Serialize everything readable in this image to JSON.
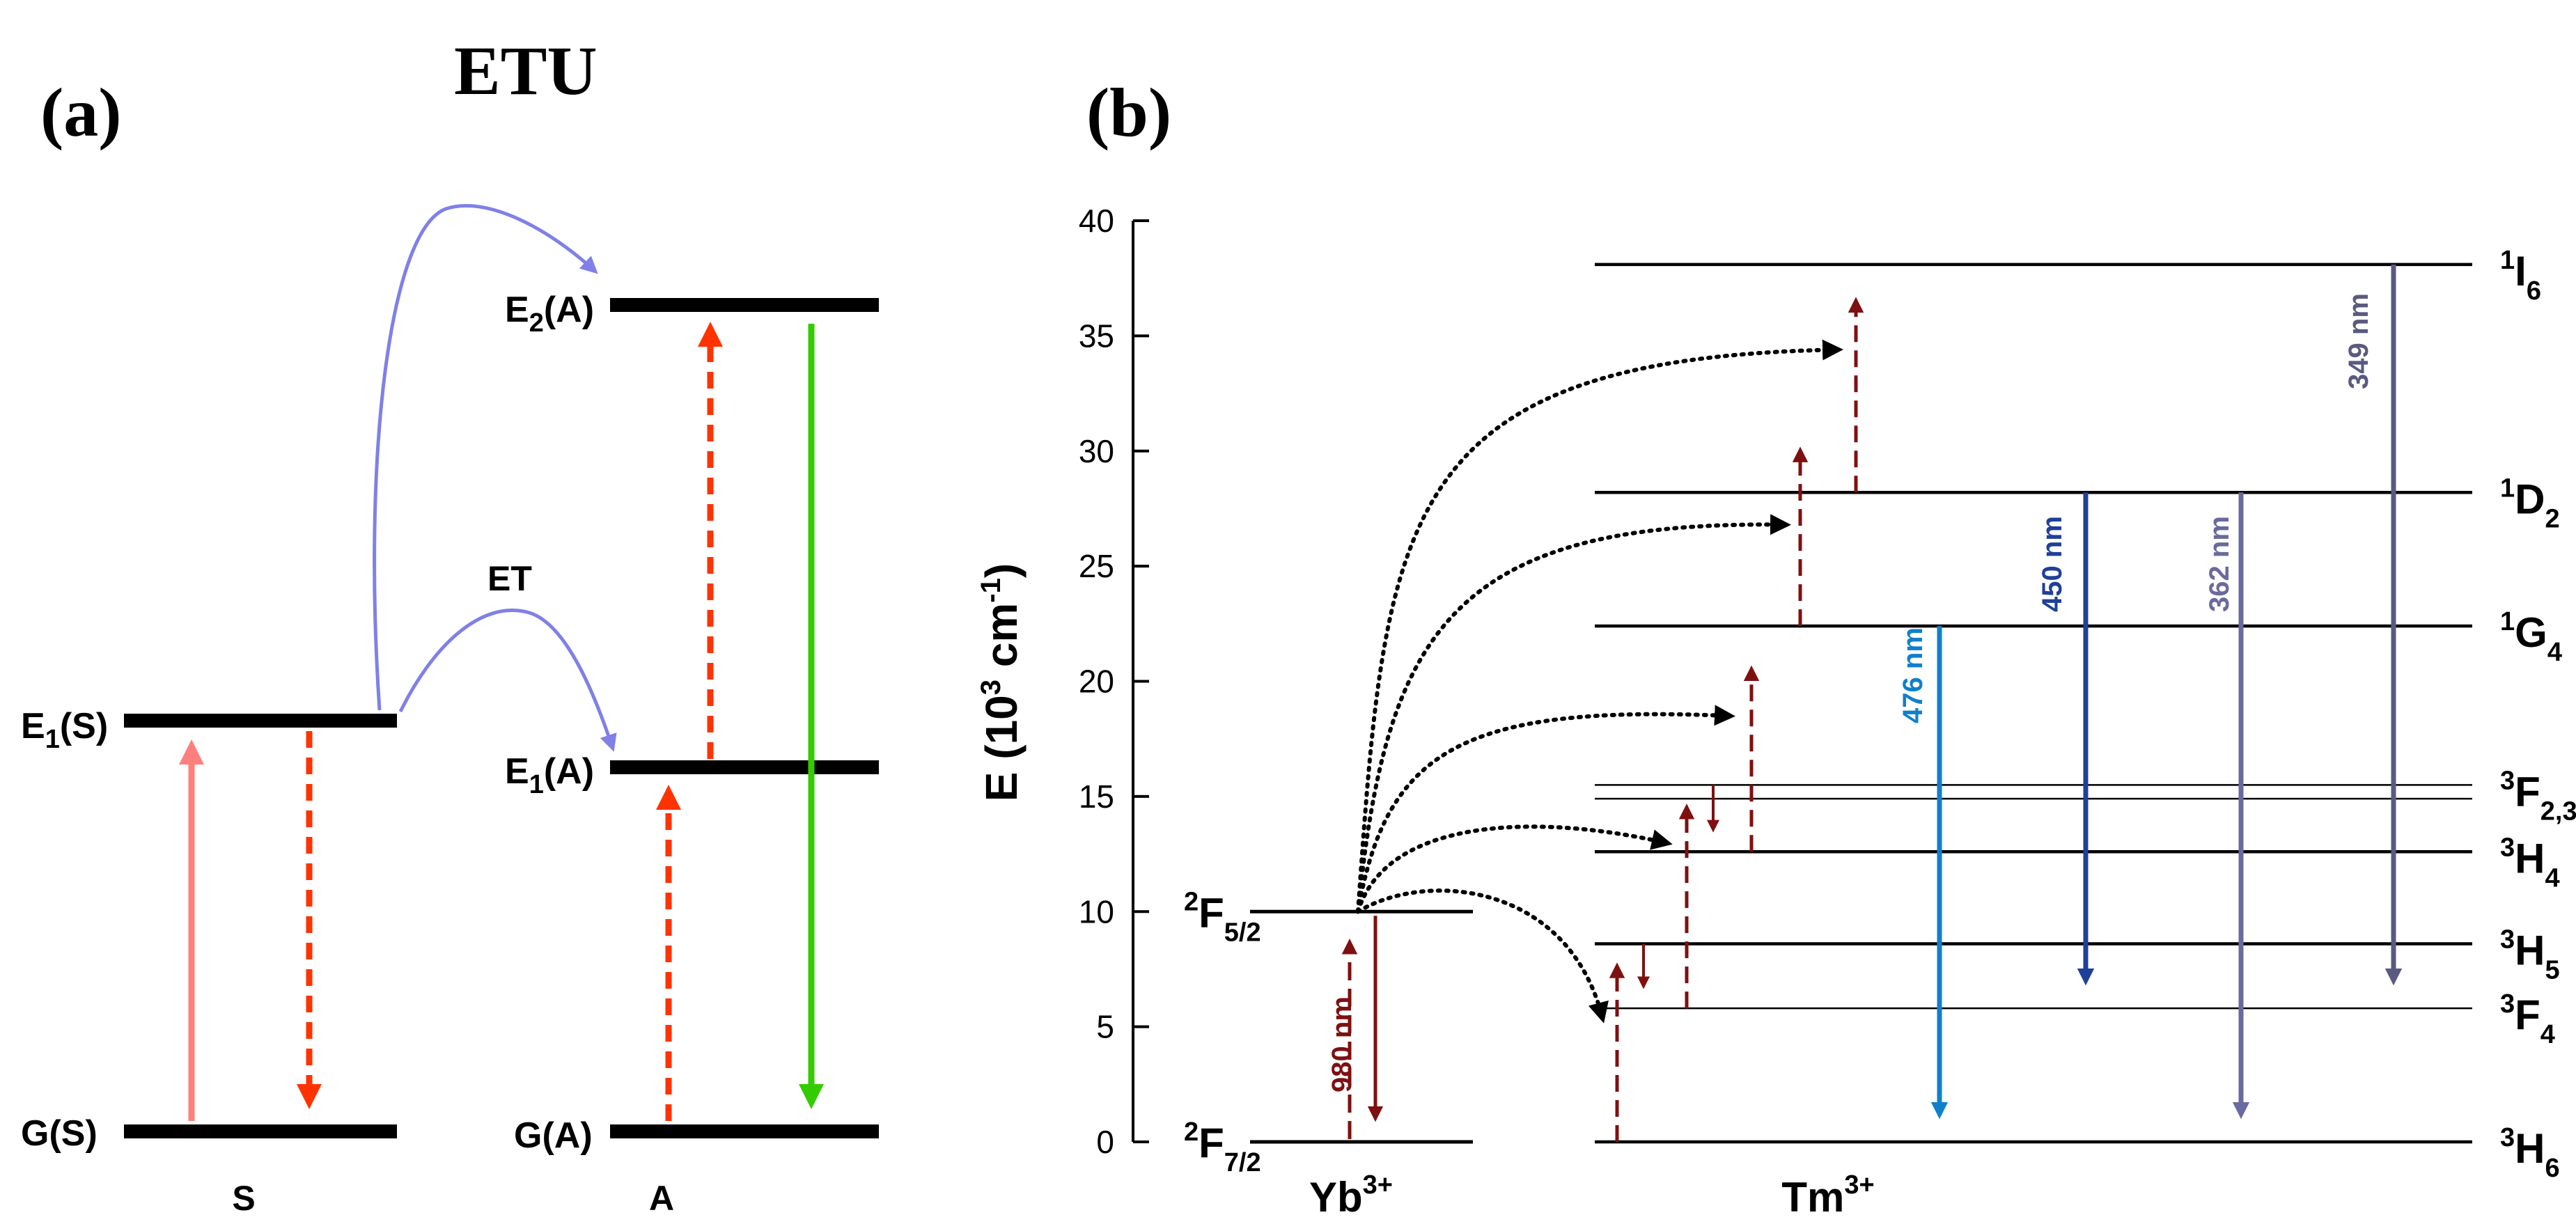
{
  "panel_a": {
    "label": "(a)",
    "title": "ETU",
    "levels": {
      "e1s": "E",
      "e1s_sub": "1",
      "e1s_tail": "(S)",
      "gs": "G(S)",
      "e2a": "E",
      "e2a_sub": "2",
      "e2a_tail": "(A)",
      "e1a": "E",
      "e1a_sub": "1",
      "e1a_tail": "(A)",
      "ga": "G(A)"
    },
    "et_label": "ET",
    "sensitizer_label": "S",
    "activator_label": "A",
    "colors": {
      "pump": "#ff7f7f",
      "dashed": "#ff3300",
      "transfer": "#8080e8",
      "emission": "#33cc00"
    }
  },
  "panel_b": {
    "label": "(b)",
    "y_axis": {
      "label_main": "E (10",
      "label_sup": "3",
      "label_unit": " cm",
      "label_unit_sup": "-1",
      "label_close": ")",
      "ticks": [
        "0",
        "5",
        "10",
        "15",
        "20",
        "25",
        "30",
        "35",
        "40"
      ],
      "range": [
        0,
        40
      ]
    },
    "yb_levels": [
      {
        "sup": "2",
        "main": "F",
        "sub": "5/2",
        "energy": 10.0
      },
      {
        "sup": "2",
        "main": "F",
        "sub": "7/2",
        "energy": 0.0
      }
    ],
    "yb_ion": "Yb",
    "yb_charge": "3+",
    "tm_ion": "Tm",
    "tm_charge": "3+",
    "tm_levels": [
      {
        "sup": "1",
        "main": "I",
        "sub": "6",
        "energy": 38.1
      },
      {
        "sup": "1",
        "main": "D",
        "sub": "2",
        "energy": 28.2
      },
      {
        "sup": "1",
        "main": "G",
        "sub": "4",
        "energy": 22.4
      },
      {
        "sup": "3",
        "main": "F",
        "sub": "2,3",
        "energy": 15.5
      },
      {
        "sup": "3",
        "main": "H",
        "sub": "4",
        "energy": 12.6
      },
      {
        "sup": "3",
        "main": "H",
        "sub": "5",
        "energy": 8.6
      },
      {
        "sup": "3",
        "main": "F",
        "sub": "4",
        "energy": 5.8
      },
      {
        "sup": "3",
        "main": "H",
        "sub": "6",
        "energy": 0.0
      }
    ],
    "wavelengths": {
      "excitation": "980 nm",
      "blue_476": "476 nm",
      "blue_450": "450 nm",
      "uv_362": "362 nm",
      "uv_349": "349 nm"
    },
    "colors": {
      "dark_red": "#7f1010",
      "blue_476": "#0f80cc",
      "blue_450": "#1f3f99",
      "uv_362": "#6a6a9e",
      "uv_349": "#5a5a80"
    }
  }
}
